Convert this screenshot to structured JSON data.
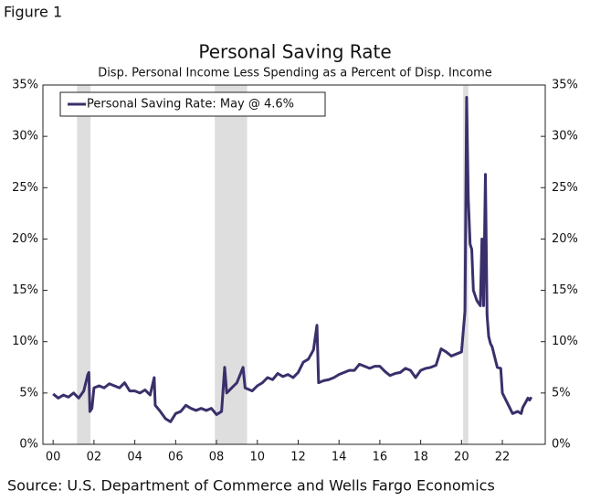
{
  "figure_label": "Figure 1",
  "source": "Source: U.S. Department of Commerce and Wells Fargo Economics",
  "chart_data": {
    "type": "line",
    "title": "Personal Saving Rate",
    "subtitle": "Disp. Personal Income Less Spending as a Percent of Disp. Income",
    "x": [
      2000.0,
      2000.25,
      2000.5,
      2000.75,
      2001.0,
      2001.25,
      2001.5,
      2001.7,
      2001.75,
      2001.8,
      2001.9,
      2002.0,
      2002.25,
      2002.5,
      2002.75,
      2003.0,
      2003.25,
      2003.5,
      2003.75,
      2004.0,
      2004.25,
      2004.5,
      2004.75,
      2004.95,
      2005.0,
      2005.25,
      2005.5,
      2005.75,
      2006.0,
      2006.25,
      2006.5,
      2006.75,
      2007.0,
      2007.25,
      2007.5,
      2007.75,
      2008.0,
      2008.25,
      2008.4,
      2008.5,
      2008.75,
      2009.0,
      2009.3,
      2009.4,
      2009.75,
      2010.0,
      2010.25,
      2010.5,
      2010.75,
      2011.0,
      2011.25,
      2011.5,
      2011.75,
      2012.0,
      2012.25,
      2012.5,
      2012.75,
      2012.92,
      2013.0,
      2013.25,
      2013.5,
      2013.75,
      2014.0,
      2014.25,
      2014.5,
      2014.75,
      2015.0,
      2015.25,
      2015.5,
      2015.75,
      2016.0,
      2016.25,
      2016.5,
      2016.75,
      2017.0,
      2017.25,
      2017.5,
      2017.75,
      2018.0,
      2018.25,
      2018.5,
      2018.75,
      2019.0,
      2019.25,
      2019.5,
      2019.75,
      2020.0,
      2020.17,
      2020.25,
      2020.33,
      2020.42,
      2020.5,
      2020.58,
      2020.75,
      2020.92,
      2021.0,
      2021.08,
      2021.17,
      2021.25,
      2021.33,
      2021.42,
      2021.5,
      2021.75,
      2021.92,
      2022.0,
      2022.25,
      2022.5,
      2022.75,
      2022.92,
      2023.0,
      2023.17,
      2023.25,
      2023.33,
      2023.42
    ],
    "series": [
      {
        "name": "Personal Saving Rate: May @ 4.6%",
        "color": "#3b2f6b",
        "values": [
          4.9,
          4.5,
          4.8,
          4.6,
          5.0,
          4.5,
          5.2,
          6.8,
          7.0,
          3.2,
          3.5,
          5.5,
          5.7,
          5.5,
          5.9,
          5.7,
          5.5,
          6.0,
          5.2,
          5.2,
          5.0,
          5.3,
          4.8,
          6.5,
          3.8,
          3.2,
          2.5,
          2.2,
          3.0,
          3.2,
          3.8,
          3.5,
          3.3,
          3.5,
          3.3,
          3.5,
          2.9,
          3.2,
          7.5,
          5.0,
          5.5,
          6.0,
          7.5,
          5.5,
          5.2,
          5.7,
          6.0,
          6.5,
          6.3,
          6.9,
          6.6,
          6.8,
          6.5,
          7.0,
          8.0,
          8.3,
          9.2,
          11.6,
          6.0,
          6.2,
          6.3,
          6.5,
          6.8,
          7.0,
          7.2,
          7.2,
          7.8,
          7.6,
          7.4,
          7.6,
          7.6,
          7.1,
          6.7,
          6.9,
          7.0,
          7.4,
          7.2,
          6.5,
          7.2,
          7.4,
          7.5,
          7.7,
          9.3,
          9.0,
          8.6,
          8.8,
          9.0,
          13.0,
          33.8,
          24.0,
          19.5,
          19.0,
          15.0,
          14.0,
          13.5,
          20.0,
          13.5,
          26.3,
          12.6,
          10.5,
          9.8,
          9.5,
          7.5,
          7.4,
          5.0,
          4.0,
          3.0,
          3.2,
          3.0,
          3.6,
          4.2,
          4.5,
          4.3,
          4.6
        ]
      }
    ],
    "shaded_ranges": [
      [
        2001.17,
        2001.83
      ],
      [
        2007.92,
        2009.5
      ],
      [
        2020.08,
        2020.33
      ]
    ],
    "shade_color": "#dedede",
    "xlim": [
      1999.5,
      2024.1
    ],
    "xticks": [
      {
        "value": 2000,
        "label": "00"
      },
      {
        "value": 2002,
        "label": "02"
      },
      {
        "value": 2004,
        "label": "04"
      },
      {
        "value": 2006,
        "label": "06"
      },
      {
        "value": 2008,
        "label": "08"
      },
      {
        "value": 2010,
        "label": "10"
      },
      {
        "value": 2012,
        "label": "12"
      },
      {
        "value": 2014,
        "label": "14"
      },
      {
        "value": 2016,
        "label": "16"
      },
      {
        "value": 2018,
        "label": "18"
      },
      {
        "value": 2020,
        "label": "20"
      },
      {
        "value": 2022,
        "label": "22"
      }
    ],
    "ylim": [
      0,
      35
    ],
    "yticks": [
      {
        "value": 0,
        "label": "0%"
      },
      {
        "value": 5,
        "label": "5%"
      },
      {
        "value": 10,
        "label": "10%"
      },
      {
        "value": 15,
        "label": "15%"
      },
      {
        "value": 20,
        "label": "20%"
      },
      {
        "value": 25,
        "label": "25%"
      },
      {
        "value": 30,
        "label": "30%"
      },
      {
        "value": 35,
        "label": "35%"
      }
    ],
    "legend": "upper left"
  }
}
